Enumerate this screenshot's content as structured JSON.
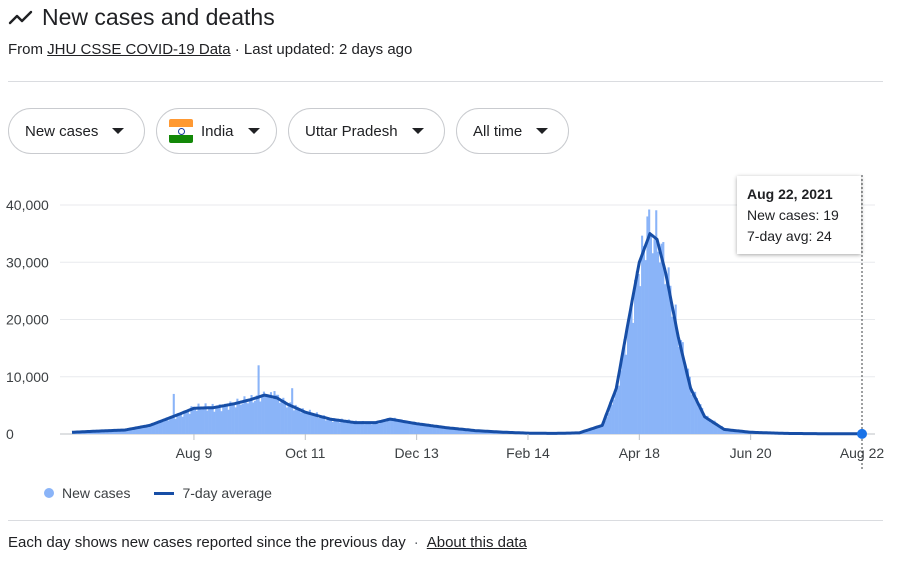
{
  "header": {
    "title": "New cases and deaths",
    "source_prefix": "From",
    "source_link": "JHU CSSE COVID-19 Data",
    "updated": "· Last updated: 2 days ago",
    "trend_icon": "trending-line-icon"
  },
  "filters": [
    {
      "label": "New cases"
    },
    {
      "label": "India",
      "flag": "india-flag-icon"
    },
    {
      "label": "Uttar Pradesh"
    },
    {
      "label": "All time"
    }
  ],
  "tooltip": {
    "date": "Aug 22, 2021",
    "new_cases": "New cases: 19",
    "avg": "7-day avg: 24"
  },
  "legend": {
    "new_cases": "New cases",
    "avg": "7-day average"
  },
  "footer": {
    "note": "Each day shows new cases reported since the previous day",
    "sep": "·",
    "link": "About this data"
  },
  "colors": {
    "bars": "#8ab4f8",
    "line": "#174ea6",
    "grid": "#e8eaed",
    "flag_saffron": "#ff9933",
    "flag_green": "#138808"
  },
  "chart_data": {
    "type": "bar+line",
    "x_range": [
      "2020-06-01",
      "2021-08-22"
    ],
    "ylim": [
      0,
      40000
    ],
    "y_ticks": [
      0,
      10000,
      20000,
      30000,
      40000
    ],
    "y_tick_labels": [
      "0",
      "10,000",
      "20,000",
      "30,000",
      "40,000"
    ],
    "x_ticks": [
      {
        "date": "2020-08-09",
        "label": "Aug 9"
      },
      {
        "date": "2020-10-11",
        "label": "Oct 11"
      },
      {
        "date": "2020-12-13",
        "label": "Dec 13"
      },
      {
        "date": "2021-02-14",
        "label": "Feb 14"
      },
      {
        "date": "2021-04-18",
        "label": "Apr 18"
      },
      {
        "date": "2021-06-20",
        "label": "Jun 20"
      },
      {
        "date": "2021-08-22",
        "label": "Aug 22"
      }
    ],
    "avg_series": [
      [
        "2020-06-01",
        300
      ],
      [
        "2020-06-15",
        500
      ],
      [
        "2020-07-01",
        700
      ],
      [
        "2020-07-15",
        1500
      ],
      [
        "2020-08-01",
        3500
      ],
      [
        "2020-08-09",
        4500
      ],
      [
        "2020-08-20",
        4600
      ],
      [
        "2020-09-01",
        5300
      ],
      [
        "2020-09-10",
        6000
      ],
      [
        "2020-09-18",
        6800
      ],
      [
        "2020-09-25",
        6300
      ],
      [
        "2020-10-01",
        5200
      ],
      [
        "2020-10-11",
        3800
      ],
      [
        "2020-10-25",
        2600
      ],
      [
        "2020-11-08",
        2000
      ],
      [
        "2020-11-20",
        2000
      ],
      [
        "2020-11-28",
        2600
      ],
      [
        "2020-12-13",
        1800
      ],
      [
        "2020-12-30",
        1100
      ],
      [
        "2021-01-15",
        600
      ],
      [
        "2021-02-01",
        300
      ],
      [
        "2021-02-14",
        150
      ],
      [
        "2021-03-01",
        100
      ],
      [
        "2021-03-15",
        200
      ],
      [
        "2021-03-28",
        1500
      ],
      [
        "2021-04-05",
        8000
      ],
      [
        "2021-04-12",
        20000
      ],
      [
        "2021-04-18",
        30000
      ],
      [
        "2021-04-24",
        35000
      ],
      [
        "2021-04-28",
        34000
      ],
      [
        "2021-05-03",
        28000
      ],
      [
        "2021-05-10",
        17000
      ],
      [
        "2021-05-17",
        8000
      ],
      [
        "2021-05-25",
        3000
      ],
      [
        "2021-06-05",
        800
      ],
      [
        "2021-06-20",
        300
      ],
      [
        "2021-07-10",
        100
      ],
      [
        "2021-08-01",
        50
      ],
      [
        "2021-08-22",
        24
      ]
    ],
    "spikes": [
      [
        "2020-07-28",
        7000
      ],
      [
        "2020-09-14",
        12000
      ],
      [
        "2020-09-19",
        6800
      ],
      [
        "2020-09-23",
        7500
      ],
      [
        "2020-10-03",
        8000
      ],
      [
        "2020-10-09",
        4500
      ],
      [
        "2021-04-22",
        38000
      ]
    ],
    "selected": {
      "date": "2021-08-22",
      "new_cases": 19,
      "avg": 24
    }
  }
}
